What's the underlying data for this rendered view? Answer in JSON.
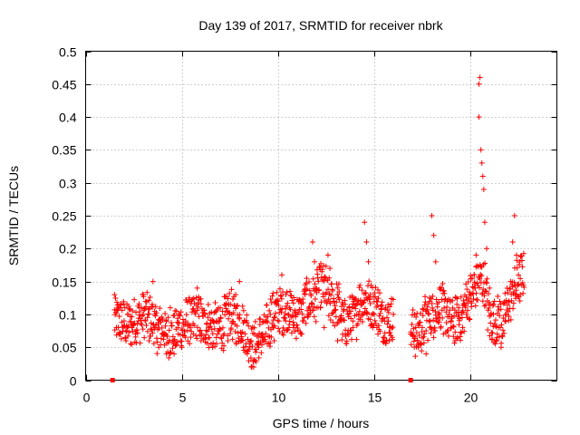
{
  "chart_data": {
    "type": "scatter",
    "title": "Day 139 of 2017, SRMTID for receiver nbrk",
    "xlabel": "GPS time / hours",
    "ylabel": "SRMTID / TECUs",
    "xlim": [
      0,
      24.5
    ],
    "ylim": [
      0,
      0.5
    ],
    "xticks": [
      0,
      5,
      10,
      15,
      20
    ],
    "xtick_labels": [
      "0",
      "5",
      "10",
      "15",
      "20"
    ],
    "yticks": [
      0,
      0.05,
      0.1,
      0.15,
      0.2,
      0.25,
      0.3,
      0.35,
      0.4,
      0.45,
      0.5
    ],
    "ytick_labels": [
      "0",
      "0.05",
      "0.1",
      "0.15",
      "0.2",
      "0.25",
      "0.3",
      "0.35",
      "0.4",
      "0.45",
      "0.5"
    ],
    "grid": true,
    "marker": "plus",
    "series_color": "#ff0000",
    "zero_markers": [
      {
        "x": 1.4,
        "y": 0
      },
      {
        "x": 16.9,
        "y": 0
      }
    ],
    "data_gap": [
      16.0,
      16.9
    ],
    "series": [
      {
        "name": "SRMTID",
        "points": [
          [
            1.5,
            0.13
          ],
          [
            1.6,
            0.08
          ],
          [
            1.7,
            0.11
          ],
          [
            1.8,
            0.07
          ],
          [
            2.0,
            0.09
          ],
          [
            2.1,
            0.06
          ],
          [
            2.2,
            0.1
          ],
          [
            2.4,
            0.08
          ],
          [
            2.6,
            0.07
          ],
          [
            2.8,
            0.11
          ],
          [
            3.0,
            0.13
          ],
          [
            3.1,
            0.09
          ],
          [
            3.3,
            0.06
          ],
          [
            3.5,
            0.15
          ],
          [
            3.6,
            0.08
          ],
          [
            3.8,
            0.05
          ],
          [
            4.0,
            0.07
          ],
          [
            4.2,
            0.04
          ],
          [
            4.4,
            0.11
          ],
          [
            4.6,
            0.06
          ],
          [
            4.8,
            0.08
          ],
          [
            5.0,
            0.05
          ],
          [
            5.2,
            0.09
          ],
          [
            5.4,
            0.12
          ],
          [
            5.6,
            0.07
          ],
          [
            5.8,
            0.14
          ],
          [
            6.0,
            0.06
          ],
          [
            6.2,
            0.1
          ],
          [
            6.4,
            0.08
          ],
          [
            6.6,
            0.05
          ],
          [
            6.8,
            0.09
          ],
          [
            7.0,
            0.11
          ],
          [
            7.2,
            0.07
          ],
          [
            7.4,
            0.06
          ],
          [
            7.6,
            0.1
          ],
          [
            7.8,
            0.13
          ],
          [
            8.0,
            0.15
          ],
          [
            8.2,
            0.05
          ],
          [
            8.4,
            0.04
          ],
          [
            8.6,
            0.06
          ],
          [
            8.8,
            0.03
          ],
          [
            9.0,
            0.05
          ],
          [
            9.2,
            0.07
          ],
          [
            9.4,
            0.09
          ],
          [
            9.6,
            0.1
          ],
          [
            9.8,
            0.06
          ],
          [
            10.0,
            0.12
          ],
          [
            10.2,
            0.16
          ],
          [
            10.4,
            0.09
          ],
          [
            10.6,
            0.11
          ],
          [
            10.8,
            0.08
          ],
          [
            11.0,
            0.1
          ],
          [
            11.2,
            0.07
          ],
          [
            11.4,
            0.13
          ],
          [
            11.6,
            0.1
          ],
          [
            11.8,
            0.21
          ],
          [
            11.9,
            0.18
          ],
          [
            12.0,
            0.14
          ],
          [
            12.2,
            0.11
          ],
          [
            12.4,
            0.08
          ],
          [
            12.6,
            0.19
          ],
          [
            12.7,
            0.17
          ],
          [
            12.9,
            0.12
          ],
          [
            13.1,
            0.06
          ],
          [
            13.3,
            0.09
          ],
          [
            13.5,
            0.07
          ],
          [
            13.7,
            0.11
          ],
          [
            13.9,
            0.08
          ],
          [
            14.1,
            0.1
          ],
          [
            14.3,
            0.12
          ],
          [
            14.5,
            0.24
          ],
          [
            14.6,
            0.21
          ],
          [
            14.7,
            0.18
          ],
          [
            14.8,
            0.13
          ],
          [
            15.0,
            0.1
          ],
          [
            15.2,
            0.07
          ],
          [
            15.4,
            0.09
          ],
          [
            15.6,
            0.11
          ],
          [
            15.8,
            0.08
          ],
          [
            16.0,
            0.1
          ],
          [
            16.9,
            0.07
          ],
          [
            17.1,
            0.1
          ],
          [
            17.3,
            0.05
          ],
          [
            17.5,
            0.08
          ],
          [
            17.7,
            0.04
          ],
          [
            17.9,
            0.12
          ],
          [
            18.0,
            0.25
          ],
          [
            18.1,
            0.22
          ],
          [
            18.2,
            0.18
          ],
          [
            18.4,
            0.1
          ],
          [
            18.6,
            0.07
          ],
          [
            18.8,
            0.12
          ],
          [
            19.0,
            0.09
          ],
          [
            19.2,
            0.06
          ],
          [
            19.4,
            0.11
          ],
          [
            19.6,
            0.08
          ],
          [
            19.8,
            0.1
          ],
          [
            20.0,
            0.12
          ],
          [
            20.2,
            0.16
          ],
          [
            20.3,
            0.19
          ],
          [
            20.45,
            0.45
          ],
          [
            20.5,
            0.46
          ],
          [
            20.45,
            0.4
          ],
          [
            20.55,
            0.35
          ],
          [
            20.6,
            0.33
          ],
          [
            20.65,
            0.31
          ],
          [
            20.7,
            0.29
          ],
          [
            20.75,
            0.24
          ],
          [
            20.85,
            0.2
          ],
          [
            21.0,
            0.14
          ],
          [
            21.2,
            0.1
          ],
          [
            21.4,
            0.07
          ],
          [
            21.6,
            0.05
          ],
          [
            21.8,
            0.09
          ],
          [
            22.0,
            0.12
          ],
          [
            22.2,
            0.21
          ],
          [
            22.3,
            0.25
          ],
          [
            22.4,
            0.19
          ],
          [
            22.5,
            0.16
          ],
          [
            22.6,
            0.13
          ]
        ]
      }
    ]
  }
}
